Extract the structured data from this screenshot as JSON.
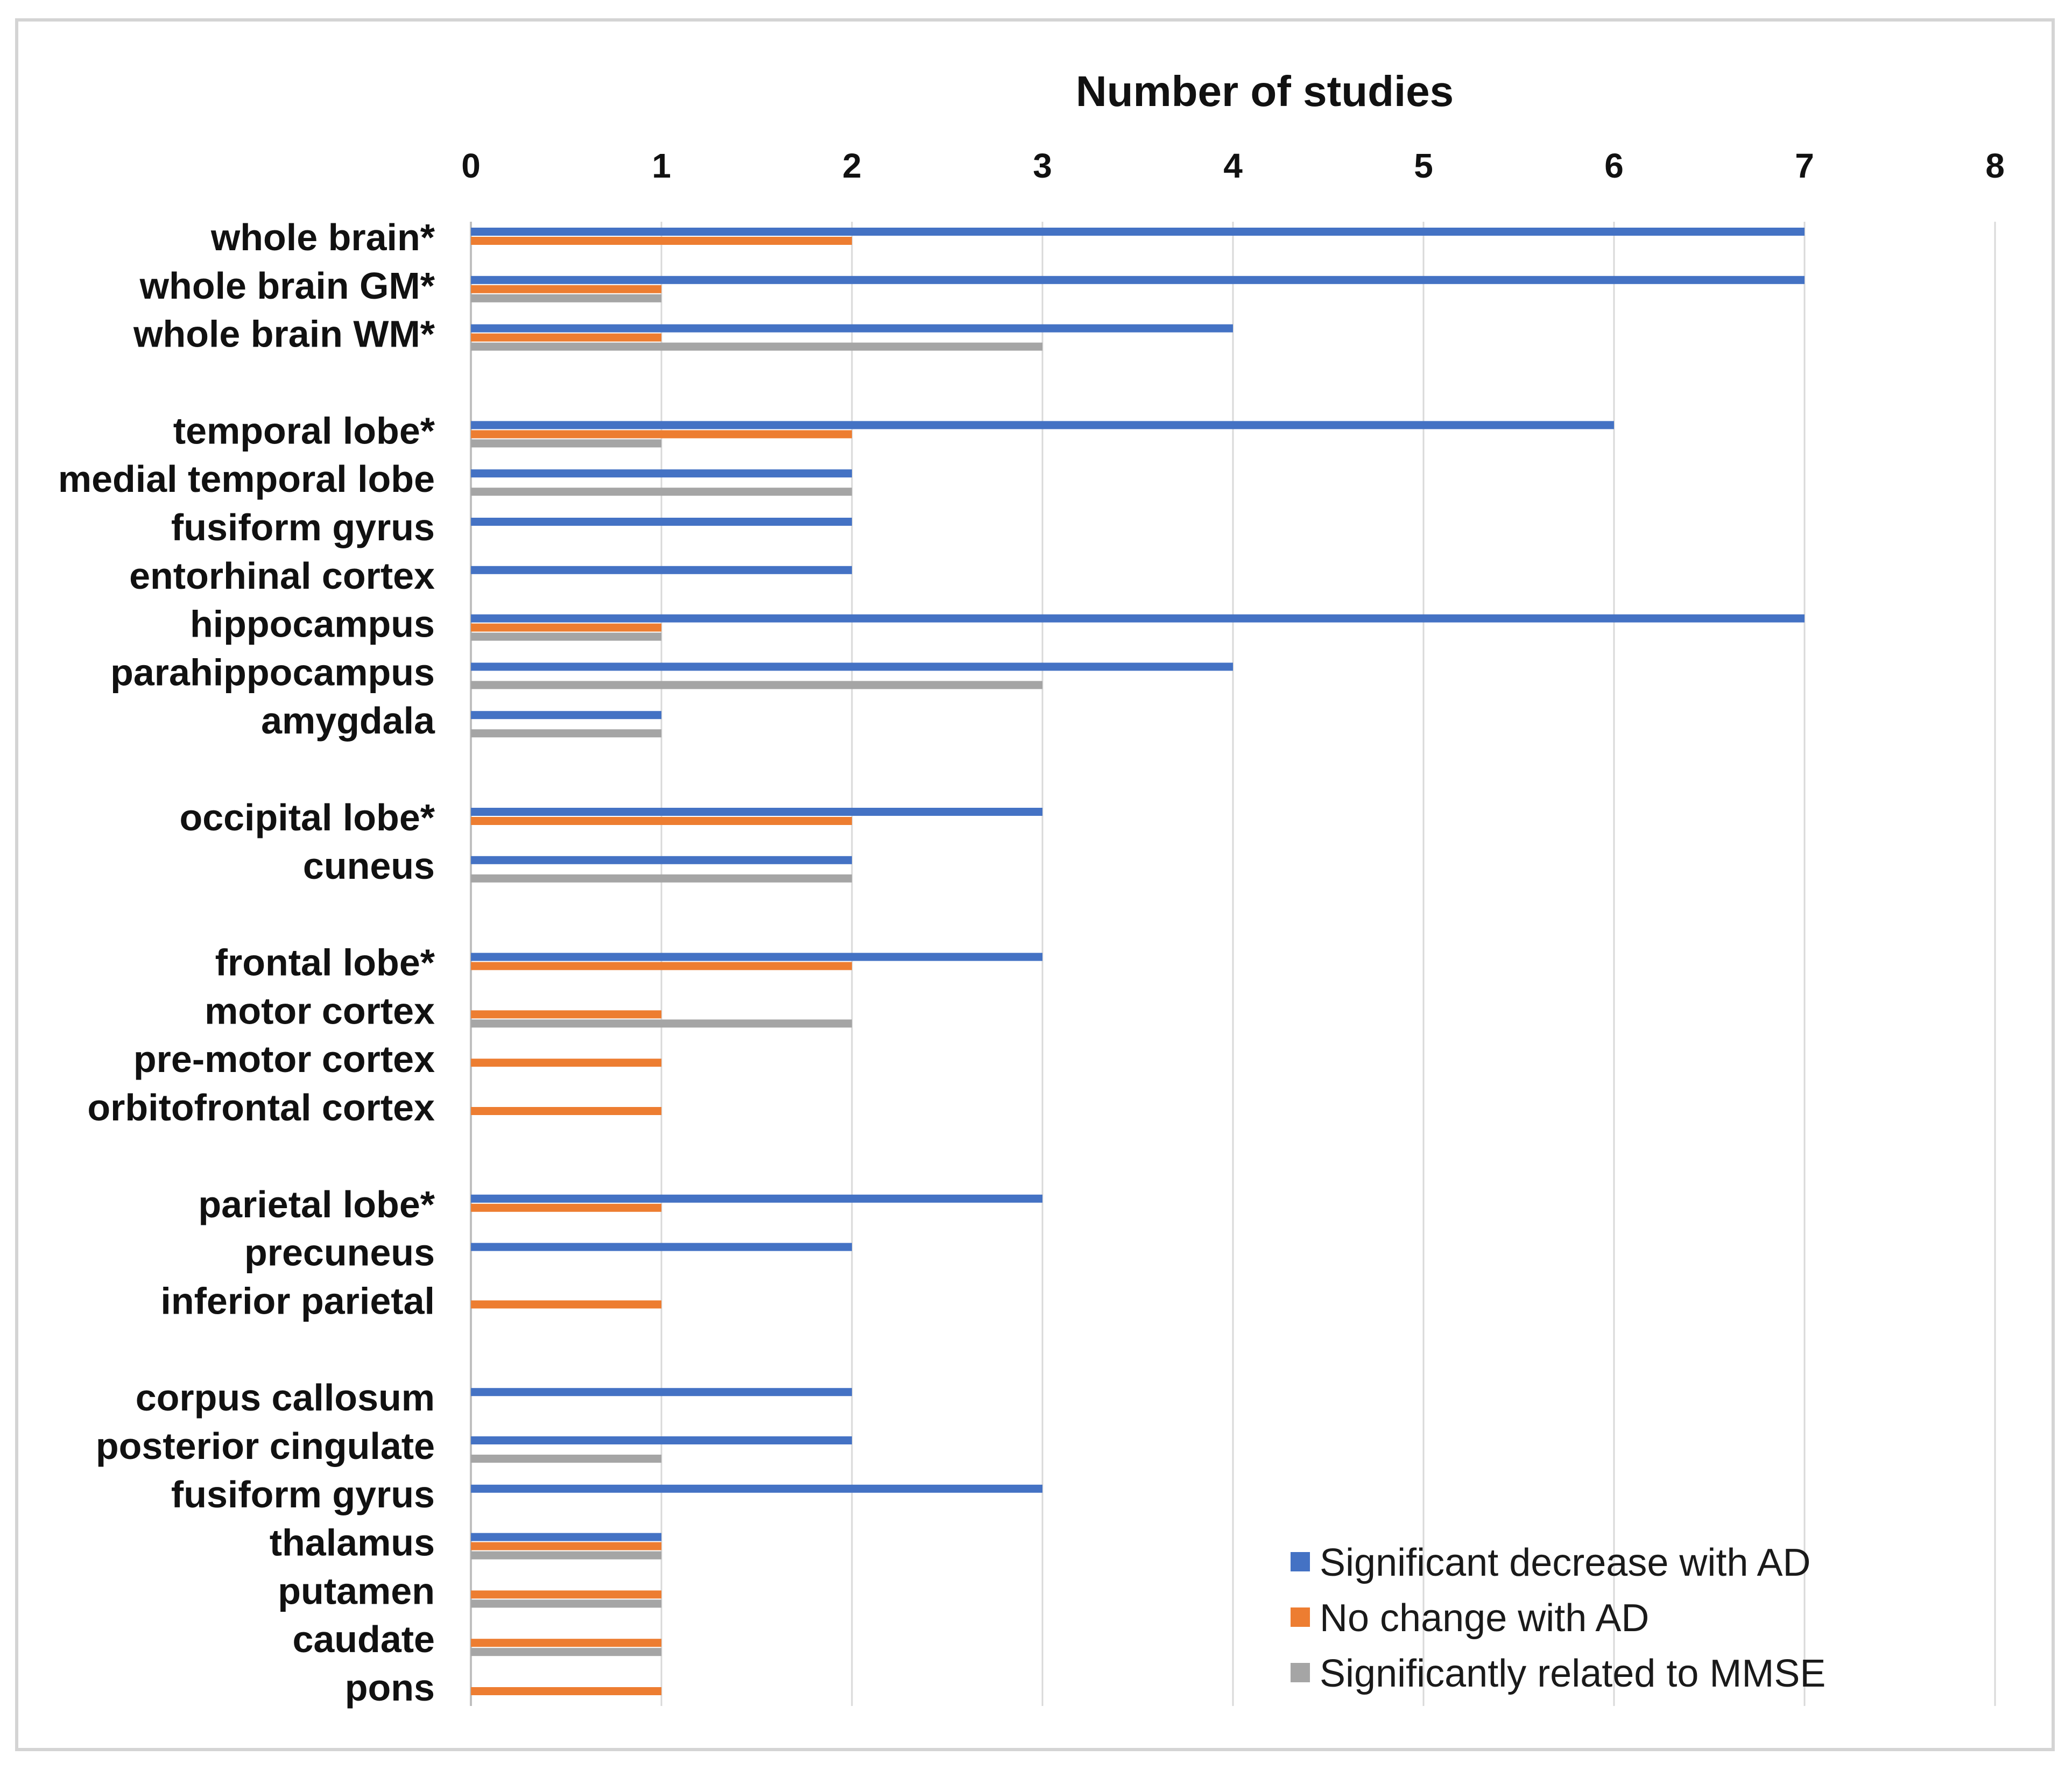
{
  "chart_data": {
    "type": "bar",
    "orientation": "horizontal",
    "title": "",
    "xlabel": "Number of studies",
    "ylabel": "",
    "xlim": [
      0,
      8
    ],
    "x_ticks": [
      "0",
      "1",
      "2",
      "3",
      "4",
      "5",
      "6",
      "7",
      "8"
    ],
    "grid": true,
    "legend_position": "bottom-right",
    "series": [
      {
        "name": "Significant decrease with AD",
        "color": "#4472C4"
      },
      {
        "name": "No change with AD",
        "color": "#ED7D31"
      },
      {
        "name": "Significantly related to MMSE",
        "color": "#A5A5A5"
      }
    ],
    "categories": [
      {
        "label": "whole brain*",
        "values": [
          7,
          2,
          0
        ]
      },
      {
        "label": "whole brain GM*",
        "values": [
          7,
          1,
          1
        ]
      },
      {
        "label": "whole brain WM*",
        "values": [
          4,
          1,
          3
        ]
      },
      {
        "label": "temporal lobe*",
        "values": [
          6,
          2,
          1
        ]
      },
      {
        "label": "medial temporal lobe",
        "values": [
          2,
          0,
          2
        ]
      },
      {
        "label": "fusiform gyrus",
        "values": [
          2,
          0,
          0
        ]
      },
      {
        "label": "entorhinal cortex",
        "values": [
          2,
          0,
          0
        ]
      },
      {
        "label": "hippocampus",
        "values": [
          7,
          1,
          1
        ]
      },
      {
        "label": "parahippocampus",
        "values": [
          4,
          0,
          3
        ]
      },
      {
        "label": "amygdala",
        "values": [
          1,
          0,
          1
        ]
      },
      {
        "label": "occipital lobe*",
        "values": [
          3,
          2,
          0
        ]
      },
      {
        "label": "cuneus",
        "values": [
          2,
          0,
          2
        ]
      },
      {
        "label": "frontal lobe*",
        "values": [
          3,
          2,
          0
        ]
      },
      {
        "label": "motor cortex",
        "values": [
          0,
          1,
          2
        ]
      },
      {
        "label": "pre-motor cortex",
        "values": [
          0,
          1,
          0
        ]
      },
      {
        "label": "orbitofrontal cortex",
        "values": [
          0,
          1,
          0
        ]
      },
      {
        "label": "parietal lobe*",
        "values": [
          3,
          1,
          0
        ]
      },
      {
        "label": "precuneus",
        "values": [
          2,
          0,
          0
        ]
      },
      {
        "label": "inferior parietal",
        "values": [
          0,
          1,
          0
        ]
      },
      {
        "label": "corpus callosum",
        "values": [
          2,
          0,
          0
        ]
      },
      {
        "label": "posterior cingulate",
        "values": [
          2,
          0,
          1
        ]
      },
      {
        "label": "fusiform gyrus",
        "values": [
          3,
          0,
          0
        ]
      },
      {
        "label": "thalamus",
        "values": [
          1,
          1,
          1
        ]
      },
      {
        "label": "putamen",
        "values": [
          0,
          1,
          1
        ]
      },
      {
        "label": "caudate",
        "values": [
          0,
          1,
          1
        ]
      },
      {
        "label": "pons",
        "values": [
          0,
          1,
          0
        ]
      }
    ]
  }
}
